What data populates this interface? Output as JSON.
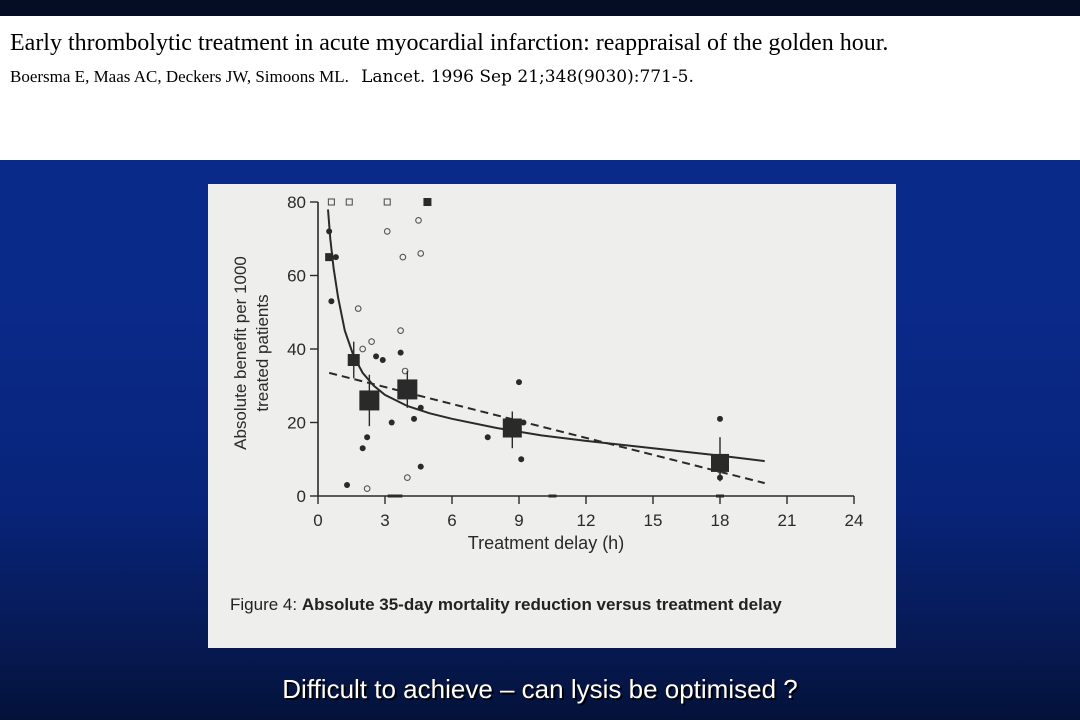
{
  "slide": {
    "citation_title": "Early thrombolytic treatment in acute myocardial infarction: reappraisal of the golden hour.",
    "citation_authors": "Boersma E, Maas AC, Deckers JW, Simoons ML.",
    "citation_journal": "Lancet. 1996 Sep 21;348(9030):771-5.",
    "bottom_text": "Difficult to achieve – can lysis be optimised ?"
  },
  "figure": {
    "caption_label": "Figure 4:",
    "caption_text": "Absolute 35-day mortality reduction versus treatment delay"
  },
  "chart_data": {
    "type": "scatter",
    "xlabel": "Treatment delay (h)",
    "ylabel_lines": [
      "Absolute benefit per 1000",
      "treated patients"
    ],
    "xlim": [
      0,
      24
    ],
    "ylim": [
      0,
      80
    ],
    "xticks": [
      0,
      3,
      6,
      9,
      12,
      15,
      18,
      21,
      24
    ],
    "xtick_labels": [
      "0",
      "3",
      "6",
      "9",
      "12",
      "15",
      "18",
      "21",
      "24"
    ],
    "yticks": [
      0,
      20,
      40,
      60,
      80
    ],
    "ytick_labels": [
      "0",
      "20",
      "40",
      "60",
      "80"
    ],
    "grid": false,
    "colors": {
      "ink": "#2a2a2a",
      "background": "#eeeeec"
    },
    "series": [
      {
        "marker": "filled-circle-small",
        "points": [
          [
            0.5,
            72
          ],
          [
            0.6,
            53
          ],
          [
            0.8,
            65
          ],
          [
            1.3,
            3
          ],
          [
            1.6,
            37
          ],
          [
            2.0,
            13
          ],
          [
            2.2,
            16
          ],
          [
            2.6,
            38
          ],
          [
            2.9,
            37
          ],
          [
            3.3,
            20
          ],
          [
            3.7,
            39
          ],
          [
            4.3,
            21
          ],
          [
            4.6,
            24
          ],
          [
            4.6,
            8
          ],
          [
            7.6,
            16
          ],
          [
            9.0,
            31
          ],
          [
            9.1,
            10
          ],
          [
            9.2,
            20
          ],
          [
            18.0,
            21
          ],
          [
            18.0,
            5
          ]
        ]
      },
      {
        "marker": "open-circle-small",
        "points": [
          [
            1.8,
            51
          ],
          [
            2.0,
            40
          ],
          [
            2.4,
            42
          ],
          [
            2.2,
            2
          ],
          [
            3.1,
            72
          ],
          [
            3.7,
            45
          ],
          [
            3.8,
            65
          ],
          [
            3.9,
            34
          ],
          [
            4.5,
            75
          ],
          [
            4.6,
            66
          ],
          [
            4.0,
            5
          ],
          [
            18.0,
            7
          ]
        ]
      },
      {
        "marker": "open-square-small",
        "points": [
          [
            0.6,
            80
          ],
          [
            1.4,
            80
          ],
          [
            3.1,
            80
          ]
        ]
      },
      {
        "marker": "filled-square-small",
        "points": [
          [
            4.9,
            80
          ],
          [
            0.5,
            65
          ]
        ]
      },
      {
        "marker": "filled-square-large",
        "points": [
          [
            1.6,
            37
          ],
          [
            2.3,
            26
          ],
          [
            4.0,
            29
          ],
          [
            8.7,
            18.5
          ],
          [
            18.0,
            9
          ]
        ],
        "error_bars": [
          [
            32,
            42
          ],
          [
            19,
            33
          ],
          [
            24,
            34
          ],
          [
            13,
            23
          ],
          [
            4,
            16
          ]
        ]
      },
      {
        "marker": "zero-markers",
        "points": [
          [
            3.3,
            0
          ],
          [
            3.6,
            0
          ],
          [
            10.5,
            0
          ],
          [
            18.0,
            0
          ]
        ]
      }
    ],
    "curves": [
      {
        "style": "solid",
        "x": [
          0.45,
          0.55,
          0.7,
          0.9,
          1.2,
          1.6,
          2.0,
          2.5,
          3.0,
          4.0,
          5.0,
          6.0,
          8.0,
          10.0,
          12.0,
          15.0,
          18.0,
          20.0
        ],
        "y": [
          78,
          70,
          62,
          54,
          45,
          38,
          33.5,
          30,
          27.5,
          24.5,
          22.5,
          21,
          18.5,
          16.5,
          15,
          13,
          11,
          9.5
        ]
      },
      {
        "style": "dashed",
        "x": [
          0.5,
          20.0
        ],
        "y": [
          33.5,
          3.5
        ]
      }
    ]
  }
}
